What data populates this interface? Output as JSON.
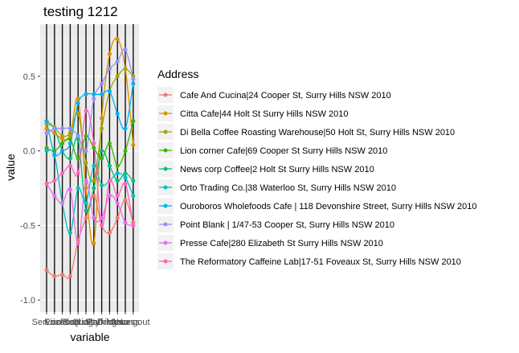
{
  "chart_data": {
    "type": "line",
    "title": "testing 1212",
    "xlabel": "variable",
    "ylabel": "value",
    "ylim": [
      -1.08,
      0.85
    ],
    "yticks": [
      -1.0,
      -0.5,
      0.0,
      0.5
    ],
    "ytick_labels": [
      "-1.0",
      "-0.5",
      "0.0",
      "0.5"
    ],
    "grid": true,
    "legend_position": "right",
    "legend_title": "Address",
    "categories": [
      "Service",
      "Price",
      "Location",
      "Food",
      "Seating",
      "Quality",
      "Staff",
      "Parking",
      "Drinks",
      "Menu",
      "Access",
      "Hangout"
    ],
    "category_labels_rendered": "SeʀvPiLcaEaSSqhuSStaiffessАccuаСаеssHangout",
    "series": [
      {
        "name": "Cafe And Cucina|24 Cooper St, Surry Hills NSW 2010",
        "color": "#F8766D",
        "values": [
          -0.8,
          -0.84,
          -0.83,
          -0.84,
          -0.6,
          -0.45,
          -0.3,
          -0.5,
          -0.55,
          -0.45,
          -0.33,
          -0.48
        ]
      },
      {
        "name": "Citta Cafe|44 Holt St Surry Hills NSW 2010",
        "color": "#D89000",
        "values": [
          0.15,
          0.12,
          0.08,
          0.1,
          0.35,
          -0.25,
          -0.62,
          0.22,
          0.65,
          0.75,
          0.55,
          0.04
        ]
      },
      {
        "name": "Di Bella Coffee Roasting Warehouse|50 Holt St, Surry Hills NSW 2010",
        "color": "#A3A500",
        "values": [
          0.18,
          0.16,
          0.1,
          0.12,
          0.25,
          -0.08,
          -0.2,
          0.15,
          0.4,
          0.5,
          0.55,
          0.5
        ]
      },
      {
        "name": "Lion corner Cafe|69 Cooper St Surry Hills NSW 2010",
        "color": "#39B600",
        "values": [
          0.02,
          0.0,
          0.05,
          0.08,
          -0.05,
          0.1,
          0.02,
          -0.05,
          0.05,
          -0.1,
          0.0,
          0.2
        ]
      },
      {
        "name": "News corp Coffee|2 Holt St Surry Hills NSW 2010",
        "color": "#00BF7D",
        "values": [
          0.2,
          0.15,
          0.0,
          -0.05,
          0.08,
          -0.4,
          -0.25,
          0.0,
          -0.1,
          -0.2,
          -0.15,
          -0.2
        ]
      },
      {
        "name": "Orto Trading Co.|38 Waterloo St, Surry Hills NSW 2010",
        "color": "#00BFC4",
        "values": [
          0.0,
          -0.03,
          -0.35,
          -0.55,
          -0.25,
          -0.35,
          -0.1,
          -0.23,
          -0.2,
          -0.15,
          -0.18,
          -0.3
        ]
      },
      {
        "name": "Ouroboros Wholefoods Cafe | 118 Devonshire Street, Surry Hills NSW 2010",
        "color": "#00B0F6",
        "values": [
          0.2,
          -0.02,
          0.0,
          0.05,
          0.32,
          0.38,
          0.38,
          0.38,
          0.4,
          0.25,
          0.15,
          0.45
        ]
      },
      {
        "name": "Point Blank | 1/47-53 Cooper St, Surry Hills NSW 2010",
        "color": "#9590FF",
        "values": [
          0.12,
          0.15,
          0.15,
          0.15,
          0.1,
          0.0,
          0.35,
          0.45,
          0.55,
          0.6,
          0.68,
          0.48
        ]
      },
      {
        "name": "Presse Cafe|280 Elizabeth St Surry Hills NSW 2010",
        "color": "#E76BF3",
        "values": [
          -0.22,
          -0.3,
          -0.35,
          -0.26,
          -0.62,
          -0.2,
          -0.45,
          -0.45,
          -0.3,
          -0.35,
          -0.48,
          -0.5
        ]
      },
      {
        "name": "The Reformatory Caffeine Lab|17-51 Foveaux St, Surry Hills NSW 2010",
        "color": "#FF62BC",
        "values": [
          -0.22,
          -0.2,
          -0.15,
          -0.1,
          -0.15,
          0.27,
          0.05,
          -0.5,
          -0.2,
          -0.3,
          -0.22,
          -0.5
        ]
      }
    ]
  }
}
